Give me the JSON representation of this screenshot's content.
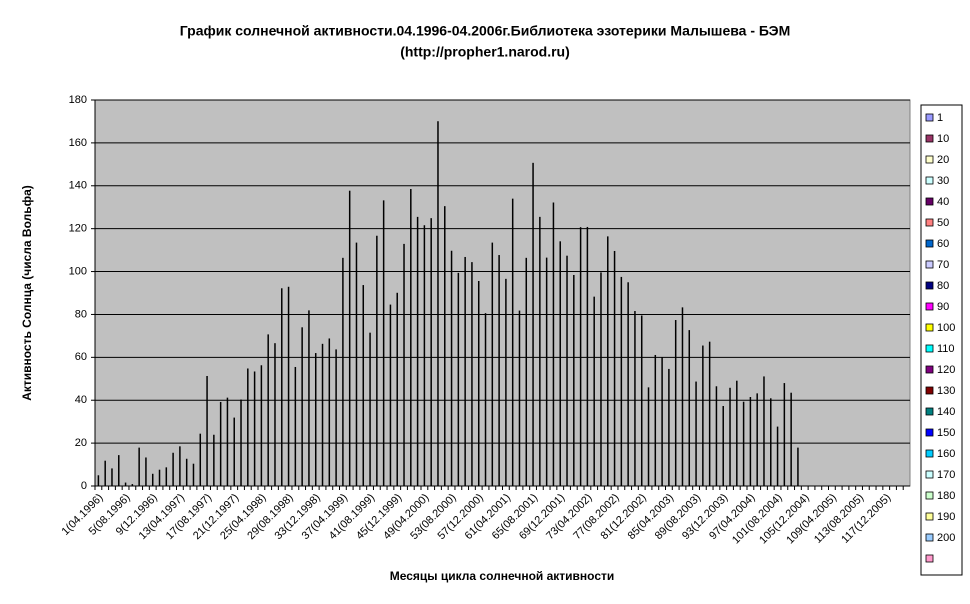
{
  "chart_data": {
    "type": "bar",
    "title": "График солнечной активности.04.1996-04.2006г.Библиотека эзотерики Малышева - БЭМ",
    "subtitle": "(http://propher1.narod.ru)",
    "x_label": "Месяцы цикла солнечной активности",
    "y_label": "Активность Солнца (числа Вольфа)",
    "categories": [
      "1(04.1996)",
      null,
      null,
      null,
      "5(08.1996)",
      null,
      null,
      null,
      "9(12.1996)",
      null,
      null,
      null,
      "13(04.1997)",
      null,
      null,
      null,
      "17(08.1997)",
      null,
      null,
      null,
      "21(12.1997)",
      null,
      null,
      null,
      "25(04.1998)",
      null,
      null,
      null,
      "29(08.1998)",
      null,
      null,
      null,
      "33(12.1998)",
      null,
      null,
      null,
      "37(04.1999)",
      null,
      null,
      null,
      "41(08.1999)",
      null,
      null,
      null,
      "45(12.1999)",
      null,
      null,
      null,
      "49(04.2000)",
      null,
      null,
      null,
      "53(08.2000)",
      null,
      null,
      null,
      "57(12.2000)",
      null,
      null,
      null,
      "61(04.2001)",
      null,
      null,
      null,
      "65(08.2001)",
      null,
      null,
      null,
      "69(12.2001)",
      null,
      null,
      null,
      "73(04.2002)",
      null,
      null,
      null,
      "77(08.2002)",
      null,
      null,
      null,
      "81(12.2002)",
      null,
      null,
      null,
      "85(04.2003)",
      null,
      null,
      null,
      "89(08.2003)",
      null,
      null,
      null,
      "93(12.2003)",
      null,
      null,
      null,
      "97(04.2004)",
      null,
      null,
      null,
      "101(08.2004)",
      null,
      null,
      null,
      "105(12.2004)",
      null,
      null,
      null,
      "109(04.2005)",
      null,
      null,
      null,
      "113(08.2005)",
      null,
      null,
      null,
      "117(12.2005)",
      null,
      null,
      null
    ],
    "values": [
      5,
      11.8,
      8.2,
      14.4,
      1.6,
      0.9,
      17.9,
      13.3,
      5.7,
      7.6,
      8.7,
      15.5,
      18.5,
      12.7,
      10.4,
      24.4,
      51.3,
      23.9,
      39.2,
      41.2,
      31.9,
      40.3,
      54.8,
      53.4,
      56.3,
      70.7,
      66.6,
      92.2,
      92.9,
      55.5,
      74.0,
      81.9,
      62.0,
      66.3,
      68.8,
      63.7,
      106.4,
      137.7,
      113.5,
      93.7,
      71.5,
      116.7,
      133.2,
      84.6,
      90.1,
      112.9,
      138.5,
      125.5,
      121.6,
      124.9,
      170.1,
      130.5,
      109.7,
      99.4,
      106.8,
      104.4,
      95.6,
      80.6,
      113.5,
      107.7,
      96.6,
      134.0,
      81.8,
      106.4,
      150.7,
      125.5,
      106.5,
      132.2,
      114.1,
      107.4,
      98.4,
      120.7,
      120.8,
      88.3,
      99.6,
      116.4,
      109.6,
      97.5,
      95.0,
      81.6,
      79.5,
      46.0,
      61.1,
      60.0,
      54.6,
      77.4,
      83.3,
      72.7,
      48.7,
      65.5,
      67.3,
      46.5,
      37.3,
      45.8,
      49.1,
      39.3,
      41.5,
      43.2,
      51.1,
      40.9,
      27.7,
      48.0,
      43.5,
      17.9,
      0,
      0,
      0,
      0,
      0,
      0,
      0,
      0,
      0,
      0,
      0,
      0,
      0,
      0,
      0,
      0
    ],
    "color": "#000000",
    "plot_background": "#c0c0c0",
    "ylim": [
      0,
      180
    ],
    "yticks": [
      0,
      20,
      40,
      60,
      80,
      100,
      120,
      140,
      160,
      180
    ],
    "grid": true,
    "legend_position": "right",
    "legend": [
      {
        "name": "1",
        "color": "#9999ff"
      },
      {
        "name": "10",
        "color": "#993366"
      },
      {
        "name": "20",
        "color": "#ffffcc"
      },
      {
        "name": "30",
        "color": "#ccffff"
      },
      {
        "name": "40",
        "color": "#660066"
      },
      {
        "name": "50",
        "color": "#ff8080"
      },
      {
        "name": "60",
        "color": "#0066cc"
      },
      {
        "name": "70",
        "color": "#ccccff"
      },
      {
        "name": "80",
        "color": "#000080"
      },
      {
        "name": "90",
        "color": "#ff00ff"
      },
      {
        "name": "100",
        "color": "#ffff00"
      },
      {
        "name": "110",
        "color": "#00ffff"
      },
      {
        "name": "120",
        "color": "#800080"
      },
      {
        "name": "130",
        "color": "#800000"
      },
      {
        "name": "140",
        "color": "#008080"
      },
      {
        "name": "150",
        "color": "#0000ff"
      },
      {
        "name": "160",
        "color": "#00ccff"
      },
      {
        "name": "170",
        "color": "#ccffff"
      },
      {
        "name": "180",
        "color": "#ccffcc"
      },
      {
        "name": "190",
        "color": "#ffff99"
      },
      {
        "name": "200",
        "color": "#99ccff"
      },
      {
        "name": null,
        "color": "#ff99cc"
      }
    ]
  }
}
